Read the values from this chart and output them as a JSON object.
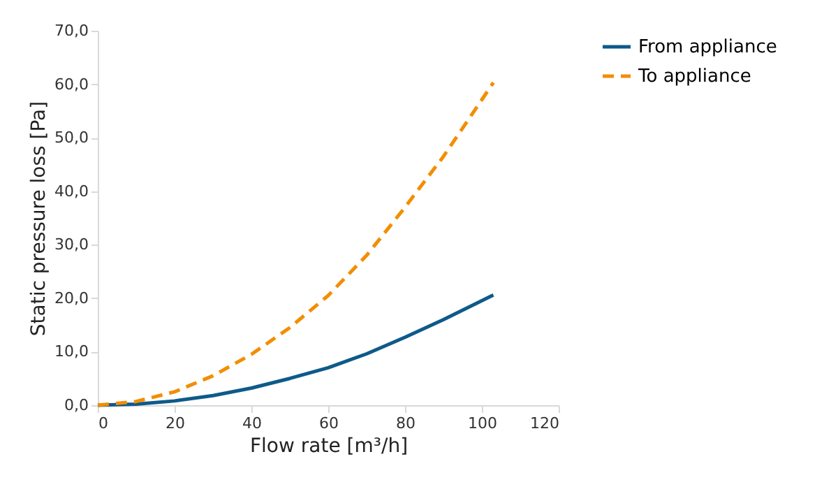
{
  "chart_data": {
    "type": "line",
    "xlabel": "Flow rate [m³/h]",
    "ylabel": "Static pressure loss [Pa]",
    "xlim": [
      0,
      120
    ],
    "xticks": [
      0,
      20,
      40,
      60,
      80,
      100,
      120
    ],
    "ylim": [
      0,
      70
    ],
    "yticks": [
      {
        "value": 0,
        "label": "0,0"
      },
      {
        "value": 10,
        "label": "10,0"
      },
      {
        "value": 20,
        "label": "20,0"
      },
      {
        "value": 30,
        "label": "30,0"
      },
      {
        "value": 40,
        "label": "40,0"
      },
      {
        "value": 50,
        "label": "50,0"
      },
      {
        "value": 60,
        "label": "60,0"
      },
      {
        "value": 70,
        "label": "70,0"
      }
    ],
    "x": [
      0,
      10,
      20,
      30,
      40,
      50,
      60,
      70,
      80,
      90,
      103
    ],
    "series": [
      {
        "name": "From appliance",
        "color": "#0e5a8a",
        "line_style": "solid",
        "values": [
          0,
          0.2,
          0.8,
          1.8,
          3.2,
          5,
          7,
          9.6,
          12.7,
          16,
          20.6
        ]
      },
      {
        "name": "To appliance",
        "color": "#f28e00",
        "line_style": "dashed",
        "values": [
          0,
          0.7,
          2.5,
          5.5,
          9.5,
          14.5,
          20.5,
          28,
          37,
          46.5,
          60.3
        ]
      }
    ],
    "grid": false,
    "legend": "right",
    "marker": "none"
  }
}
